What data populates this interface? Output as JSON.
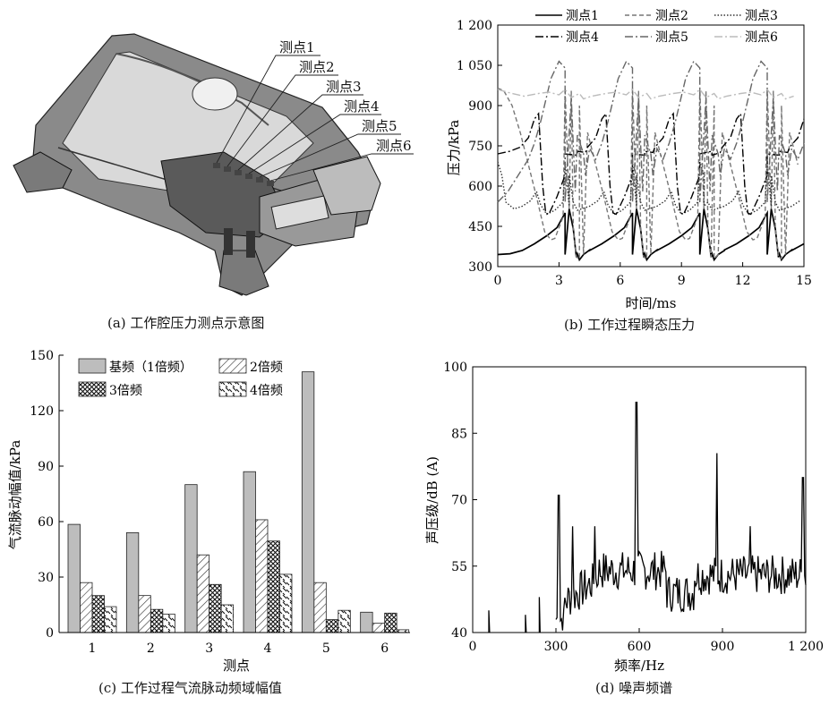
{
  "panel_a": {
    "caption": "(a) 工作腔压力测点示意图",
    "point_labels": [
      "测点1",
      "测点2",
      "测点3",
      "测点4",
      "测点5",
      "测点6"
    ]
  },
  "panel_b": {
    "caption": "(b) 工作过程瞬态压力",
    "chart_data": {
      "type": "line",
      "xlabel": "时间/ms",
      "ylabel": "压力/kPa",
      "xlim": [
        0,
        15
      ],
      "ylim": [
        300,
        1200
      ],
      "x_ticks": [
        "0",
        "3",
        "6",
        "9",
        "12",
        "15"
      ],
      "y_ticks": [
        "300",
        "450",
        "600",
        "750",
        "900",
        "1 050",
        "1 200"
      ],
      "period_ms": 3.3,
      "series": [
        {
          "name": "测点1",
          "style": "solid",
          "color": "#000000",
          "points": [
            [
              0,
              345
            ],
            [
              0.6,
              348
            ],
            [
              1.2,
              360
            ],
            [
              1.8,
              385
            ],
            [
              2.4,
              415
            ],
            [
              2.9,
              445
            ],
            [
              3.3,
              500
            ],
            [
              3.5,
              515
            ],
            [
              3.7,
              440
            ],
            [
              3.85,
              335
            ],
            [
              4.0,
              325
            ],
            [
              4.2,
              345
            ],
            [
              4.5,
              362
            ]
          ]
        },
        {
          "name": "测点2",
          "style": "dash",
          "color": "#777777",
          "points": [
            [
              0,
              965
            ],
            [
              0.3,
              955
            ],
            [
              0.7,
              900
            ],
            [
              1.1,
              800
            ],
            [
              1.5,
              680
            ],
            [
              1.9,
              560
            ],
            [
              2.3,
              430
            ],
            [
              2.6,
              400
            ],
            [
              2.8,
              405
            ],
            [
              3.2,
              485
            ],
            [
              3.5,
              515
            ],
            [
              3.7,
              440
            ],
            [
              3.85,
              335
            ],
            [
              4.0,
              330
            ],
            [
              4.2,
              345
            ]
          ]
        },
        {
          "name": "测点3",
          "style": "dot",
          "color": "#333333",
          "points": [
            [
              0,
              690
            ],
            [
              0.2,
              640
            ],
            [
              0.4,
              540
            ],
            [
              0.8,
              515
            ],
            [
              1.2,
              525
            ],
            [
              1.6,
              545
            ],
            [
              1.9,
              580
            ],
            [
              2.1,
              530
            ],
            [
              2.4,
              495
            ],
            [
              2.8,
              510
            ],
            [
              3.2,
              540
            ],
            [
              3.5,
              525
            ],
            [
              3.9,
              510
            ],
            [
              4.3,
              520
            ]
          ]
        },
        {
          "name": "测点4",
          "style": "dashdot",
          "color": "#000000",
          "points": [
            [
              0,
              720
            ],
            [
              0.6,
              730
            ],
            [
              1.1,
              745
            ],
            [
              1.5,
              780
            ],
            [
              1.8,
              850
            ],
            [
              2.0,
              870
            ],
            [
              2.2,
              600
            ],
            [
              2.35,
              500
            ],
            [
              2.5,
              495
            ],
            [
              2.9,
              560
            ],
            [
              3.3,
              640
            ],
            [
              3.9,
              715
            ],
            [
              4.3,
              725
            ]
          ]
        },
        {
          "name": "测点5",
          "style": "dashdot",
          "color": "#666666",
          "points": [
            [
              0,
              540
            ],
            [
              0.5,
              580
            ],
            [
              1.0,
              640
            ],
            [
              1.5,
              700
            ],
            [
              1.8,
              760
            ],
            [
              2.1,
              840
            ],
            [
              2.6,
              1000
            ],
            [
              3.0,
              1065
            ],
            [
              3.3,
              1040
            ],
            [
              3.6,
              930
            ],
            [
              3.9,
              790
            ],
            [
              4.2,
              720
            ],
            [
              4.5,
              740
            ]
          ]
        },
        {
          "name": "测点6",
          "style": "dashdot",
          "color": "#bbbbbb",
          "points": [
            [
              0,
              960
            ],
            [
              0.7,
              945
            ],
            [
              1.3,
              935
            ],
            [
              2.0,
              945
            ],
            [
              2.5,
              950
            ],
            [
              3.0,
              940
            ],
            [
              3.6,
              930
            ],
            [
              4.2,
              925
            ]
          ]
        }
      ]
    }
  },
  "panel_c": {
    "caption": "(c) 工作过程气流脉动频域幅值",
    "chart_data": {
      "type": "bar",
      "xlabel": "测点",
      "ylabel": "气流脉动幅值/kPa",
      "ylim": [
        0,
        150
      ],
      "y_ticks": [
        "0",
        "30",
        "60",
        "90",
        "120",
        "150"
      ],
      "categories": [
        "1",
        "2",
        "3",
        "4",
        "5",
        "6"
      ],
      "series": [
        {
          "name": "基频（1倍频）",
          "pattern": "solid-gray",
          "values": [
            58.5,
            54,
            80,
            87,
            141,
            11
          ]
        },
        {
          "name": "2倍频",
          "pattern": "diagonal",
          "values": [
            27,
            20,
            42,
            61,
            27,
            5
          ]
        },
        {
          "name": "3倍频",
          "pattern": "crosshatch",
          "values": [
            20,
            12.5,
            26,
            49.5,
            7,
            10.5
          ]
        },
        {
          "name": "4倍频",
          "pattern": "backslash",
          "values": [
            14,
            10,
            15,
            31.5,
            12,
            1.5
          ]
        }
      ]
    }
  },
  "panel_d": {
    "caption": "(d) 噪声频谱",
    "chart_data": {
      "type": "line",
      "xlabel": "频率/Hz",
      "ylabel": "声压级/dB (A)",
      "xlim": [
        0,
        1200
      ],
      "ylim": [
        40,
        100
      ],
      "x_ticks": [
        "0",
        "300",
        "600",
        "900",
        "1 200"
      ],
      "y_ticks": [
        "40",
        "55",
        "70",
        "85",
        "100"
      ],
      "peaks": [
        [
          58,
          45
        ],
        [
          190,
          44
        ],
        [
          240,
          48
        ],
        [
          310,
          71
        ],
        [
          360,
          64
        ],
        [
          440,
          64
        ],
        [
          590,
          92
        ],
        [
          880,
          80.5
        ],
        [
          1000,
          64
        ],
        [
          1190,
          75
        ]
      ]
    }
  }
}
